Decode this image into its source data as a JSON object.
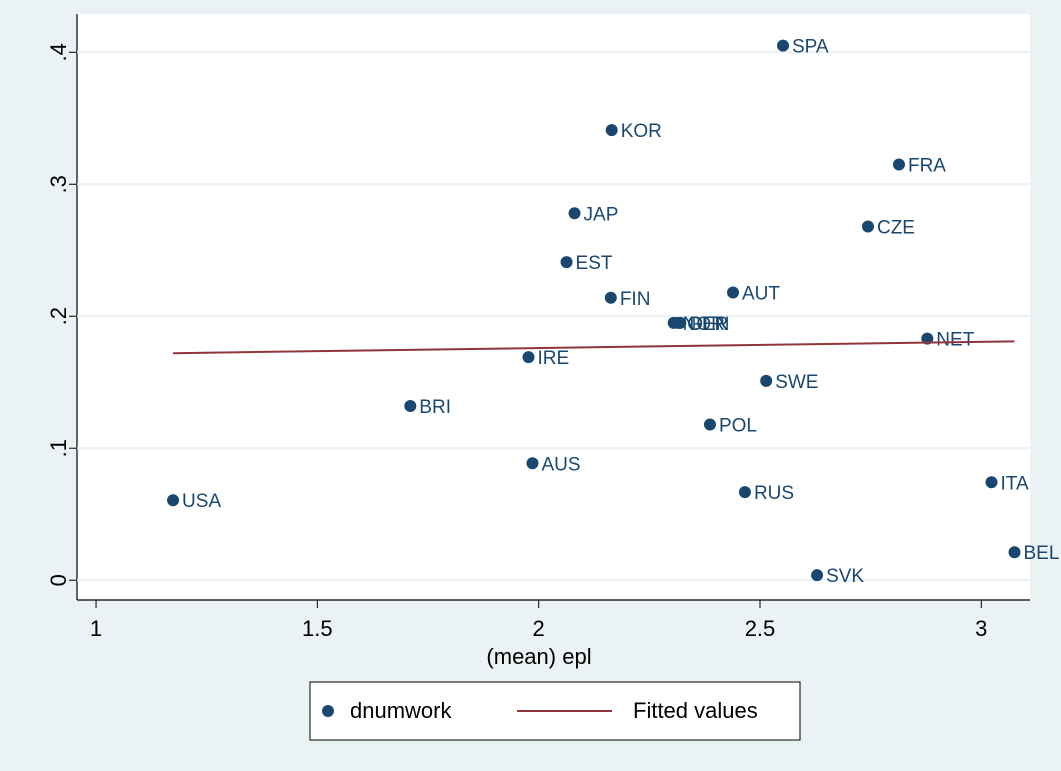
{
  "chart_data": {
    "type": "scatter",
    "xlabel": "(mean) epl",
    "xlim": [
      0.957,
      3.11
    ],
    "xticks": [
      1,
      1.5,
      2,
      2.5,
      3
    ],
    "ylim": [
      -0.015,
      0.429
    ],
    "yticks": [
      0,
      {
        "value": 0.1,
        "label": ".1"
      },
      {
        "value": 0.2,
        "label": ".2"
      },
      {
        "value": 0.3,
        "label": ".3"
      },
      {
        "value": 0.4,
        "label": ".4"
      }
    ],
    "grid": true,
    "legend": "bottom",
    "series": [
      {
        "name": "dnumwork",
        "type": "scatter",
        "color": "#1a476f",
        "labels": [
          "USA",
          "BRI",
          "IRE",
          "AUS",
          "EST",
          "JAP",
          "FIN",
          "KOR",
          "NOR",
          "GER",
          "DEN",
          "AUT",
          "POL",
          "RUS",
          "SWE",
          "SPA",
          "SVK",
          "CZE",
          "FRA",
          "NET",
          "ITA",
          "BEL"
        ],
        "x": [
          1.174,
          1.71,
          1.977,
          1.986,
          2.063,
          2.081,
          2.163,
          2.165,
          2.305,
          2.315,
          2.32,
          2.439,
          2.387,
          2.466,
          2.514,
          2.552,
          2.629,
          2.744,
          2.814,
          2.878,
          3.023,
          3.075
        ],
        "values": [
          0.0606,
          0.132,
          0.169,
          0.0886,
          0.241,
          0.278,
          0.214,
          0.341,
          0.195,
          0.195,
          0.195,
          0.218,
          0.118,
          0.0667,
          0.151,
          0.405,
          0.0038,
          0.268,
          0.315,
          0.183,
          0.0742,
          0.0212
        ]
      },
      {
        "name": "Fitted values",
        "type": "line",
        "color": "#90353b",
        "x": [
          1.174,
          3.075
        ],
        "values": [
          0.172,
          0.181
        ]
      }
    ]
  }
}
